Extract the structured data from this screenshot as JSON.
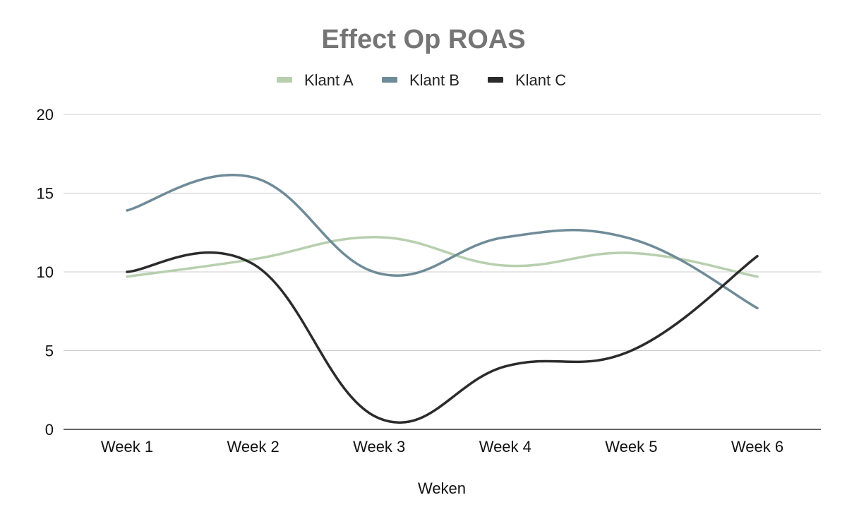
{
  "chart_data": {
    "type": "line",
    "title": "Effect Op ROAS",
    "xlabel": "Weken",
    "ylabel": "",
    "categories": [
      "Week 1",
      "Week 2",
      "Week 3",
      "Week 4",
      "Week 5",
      "Week 6"
    ],
    "ylim": [
      0,
      20
    ],
    "yticks": [
      "0",
      "5",
      "10",
      "15",
      "20"
    ],
    "grid": true,
    "legend_position": "top-center",
    "smooth": true,
    "series": [
      {
        "name": "Klant A",
        "color": "#b7cfae",
        "values": [
          9.7,
          10.8,
          12.2,
          10.4,
          11.2,
          9.7
        ]
      },
      {
        "name": "Klant B",
        "color": "#6f8b98",
        "values": [
          13.9,
          16.0,
          9.9,
          12.2,
          12.1,
          7.7
        ]
      },
      {
        "name": "Klant C",
        "color": "#2b2b2b",
        "values": [
          10.0,
          10.5,
          0.7,
          4.0,
          5.0,
          11.0
        ]
      }
    ]
  }
}
